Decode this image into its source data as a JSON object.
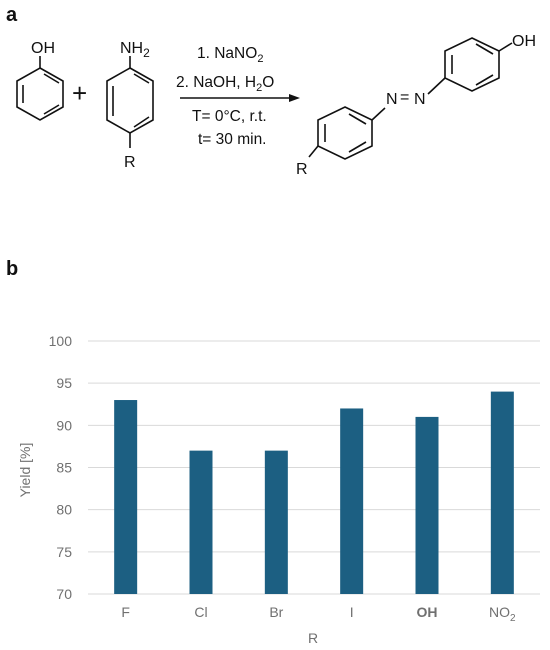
{
  "panels": {
    "a": "a",
    "b": "b"
  },
  "scheme": {
    "reactant1_group": "OH",
    "plus": "+",
    "reactant2_group": "NH",
    "reactant2_sub": "2",
    "reactant2_R": "R",
    "cond1_text": "1. NaNO",
    "cond1_sub": "2",
    "cond2_text": "2. NaOH, H",
    "cond2_sub": "2",
    "cond2_end": "O",
    "cond3": "T= 0°C, r.t.",
    "cond4": "t= 30 min.",
    "product_OH": "OH",
    "product_N1": "N",
    "product_eq": "=",
    "product_N2": "N",
    "product_R": "R"
  },
  "chart_data": {
    "type": "bar",
    "categories": [
      "F",
      "Cl",
      "Br",
      "I",
      "OH",
      "NO2"
    ],
    "category_labels": [
      {
        "main": "F",
        "sub": ""
      },
      {
        "main": "Cl",
        "sub": ""
      },
      {
        "main": "Br",
        "sub": ""
      },
      {
        "main": "I",
        "sub": ""
      },
      {
        "main": "OH",
        "sub": ""
      },
      {
        "main": "NO",
        "sub": "2"
      }
    ],
    "bold_category": "OH",
    "values": [
      93,
      87,
      87,
      92,
      91,
      94
    ],
    "xlabel": "R",
    "ylabel": "Yield [%]",
    "ylim": [
      70,
      100
    ],
    "yticks": [
      70,
      75,
      80,
      85,
      90,
      95,
      100
    ],
    "bar_color": "#1c5f82",
    "grid": true,
    "grid_color": "#d9d9d9"
  }
}
